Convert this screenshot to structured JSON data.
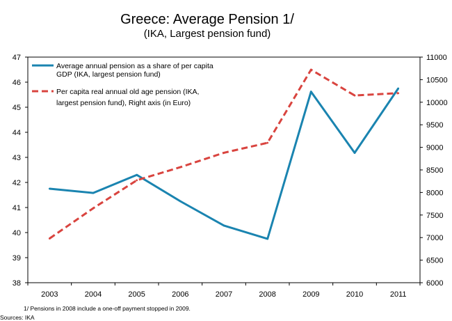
{
  "chart_data": {
    "type": "line",
    "title": "Greece: Average Pension 1/",
    "subtitle": "(IKA, Largest pension fund)",
    "x": [
      "2003",
      "2004",
      "2005",
      "2006",
      "2007",
      "2008",
      "2009",
      "2010",
      "2011"
    ],
    "left_axis": {
      "ylim": [
        38,
        47
      ],
      "ticks": [
        "38",
        "39",
        "40",
        "41",
        "42",
        "43",
        "44",
        "45",
        "46",
        "47"
      ]
    },
    "right_axis": {
      "ylim": [
        6000,
        11000
      ],
      "ticks": [
        "6000",
        "6500",
        "7000",
        "7500",
        "8000",
        "8500",
        "9000",
        "9500",
        "10000",
        "10500",
        "11000"
      ]
    },
    "series": [
      {
        "name_lines": [
          "Average annual pension as a share of per capita",
          "GDP (IKA, largest pension fund)"
        ],
        "axis": "left",
        "color": "#1a84b0",
        "style": "solid",
        "values": [
          41.75,
          41.58,
          42.3,
          41.25,
          40.28,
          39.75,
          45.62,
          43.18,
          45.75
        ]
      },
      {
        "name_lines": [
          "Per capita real annual old age pension (IKA,",
          "largest pension fund), Right axis (in Euro)"
        ],
        "axis": "right",
        "color": "#d9443f",
        "style": "dashed",
        "values": [
          6980,
          7650,
          8270,
          8560,
          8880,
          9100,
          10720,
          10150,
          10200
        ]
      }
    ],
    "legend_position": "top-left",
    "grid": false,
    "footnote": "1/ Pensions in 2008 include a one-off payment stopped in 2009.",
    "source": "Sources: IKA"
  }
}
